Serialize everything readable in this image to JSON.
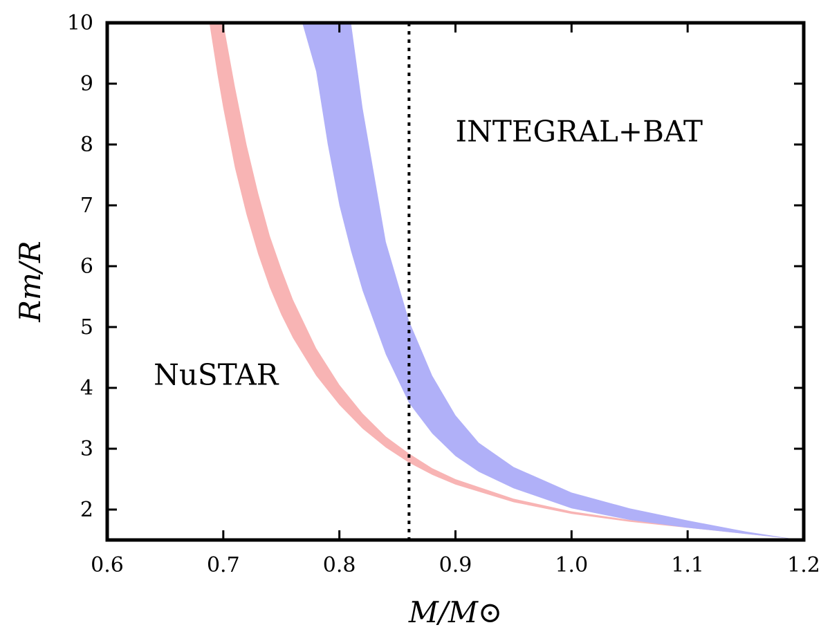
{
  "chart_data": {
    "type": "area",
    "title": "",
    "xlabel": "M/M⊙",
    "ylabel": "Rm/R",
    "xlim": [
      0.6,
      1.2
    ],
    "ylim": [
      1.5,
      10
    ],
    "xticks": [
      0.6,
      0.7,
      0.8,
      0.9,
      1.0,
      1.1,
      1.2
    ],
    "xtick_labels": [
      "0.6",
      "0.7",
      "0.8",
      "0.9",
      "1.0",
      "1.1",
      "1.2"
    ],
    "yticks": [
      2,
      3,
      4,
      5,
      6,
      7,
      8,
      9,
      10
    ],
    "ytick_labels": [
      "2",
      "3",
      "4",
      "5",
      "6",
      "7",
      "8",
      "9",
      "10"
    ],
    "grid": false,
    "series": [
      {
        "name": "NuSTAR",
        "color": "#f8b4b4",
        "x": [
          0.688,
          0.695,
          0.7,
          0.71,
          0.72,
          0.73,
          0.74,
          0.75,
          0.76,
          0.78,
          0.8,
          0.82,
          0.84,
          0.86,
          0.88,
          0.9,
          0.95,
          1.0,
          1.05,
          1.1,
          1.15,
          1.19
        ],
        "lower": [
          10.0,
          9.15,
          8.6,
          7.62,
          6.85,
          6.2,
          5.65,
          5.2,
          4.82,
          4.2,
          3.72,
          3.33,
          3.02,
          2.77,
          2.57,
          2.41,
          2.12,
          1.93,
          1.8,
          1.7,
          1.6,
          1.52
        ],
        "upper": [
          10.0,
          10.0,
          10.0,
          8.95,
          8.0,
          7.2,
          6.5,
          5.95,
          5.45,
          4.65,
          4.05,
          3.58,
          3.2,
          2.92,
          2.68,
          2.5,
          2.18,
          1.97,
          1.83,
          1.72,
          1.61,
          1.52
        ]
      },
      {
        "name": "INTEGRAL+BAT",
        "color": "#b0b0f8",
        "x": [
          0.768,
          0.78,
          0.79,
          0.8,
          0.81,
          0.82,
          0.84,
          0.86,
          0.88,
          0.9,
          0.92,
          0.95,
          1.0,
          1.05,
          1.1,
          1.15,
          1.19
        ],
        "lower": [
          10.0,
          9.2,
          8.0,
          7.0,
          6.25,
          5.6,
          4.55,
          3.75,
          3.25,
          2.88,
          2.62,
          2.35,
          2.02,
          1.83,
          1.7,
          1.6,
          1.52
        ],
        "upper": [
          10.0,
          10.0,
          10.0,
          10.0,
          10.0,
          8.6,
          6.4,
          5.1,
          4.2,
          3.55,
          3.1,
          2.7,
          2.28,
          2.02,
          1.82,
          1.64,
          1.52
        ]
      }
    ],
    "vline": {
      "x": 0.86,
      "style": "dotted",
      "color": "#000000"
    },
    "annotations": [
      {
        "text": "NuSTAR",
        "x": 0.64,
        "y": 4.05
      },
      {
        "text": "INTEGRAL+BAT",
        "x": 0.9,
        "y": 8.05
      }
    ]
  }
}
